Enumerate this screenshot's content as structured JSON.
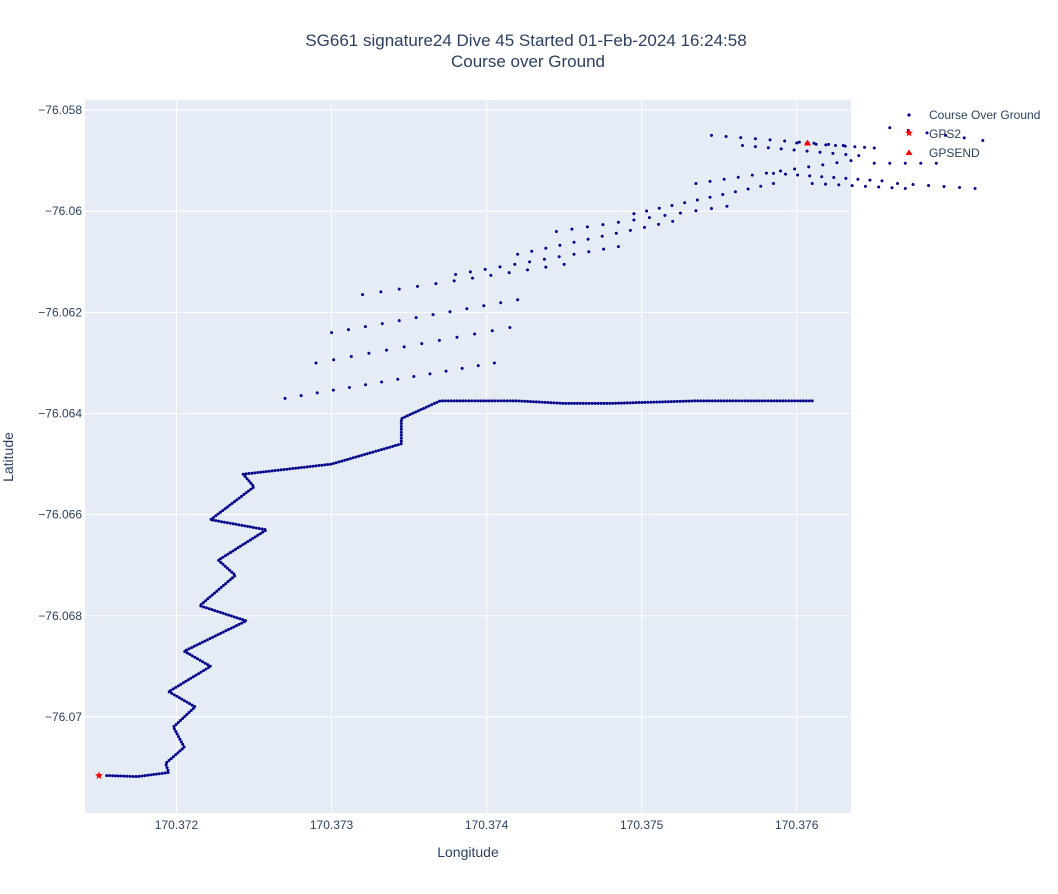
{
  "chart_data": {
    "type": "scatter",
    "title_lines": [
      "SG661 signature24 Dive 45 Started 01-Feb-2024 16:24:58",
      "Course over Ground"
    ],
    "xlabel": "Longitude",
    "ylabel": "Latitude",
    "xlim": [
      170.37141,
      170.37635
    ],
    "ylim": [
      -76.0719,
      -76.0578
    ],
    "x_ticks": [
      170.372,
      170.373,
      170.374,
      170.375,
      170.376
    ],
    "x_tick_labels": [
      "170.372",
      "170.373",
      "170.374",
      "170.375",
      "170.376"
    ],
    "y_ticks": [
      -76.058,
      -76.06,
      -76.062,
      -76.064,
      -76.066,
      -76.068,
      -76.07
    ],
    "y_tick_labels": [
      "−76.058",
      "−76.06",
      "−76.062",
      "−76.064",
      "−76.066",
      "−76.068",
      "−76.07"
    ],
    "grid": true,
    "legend_position": "top-right",
    "colors": {
      "plot_bg": "#e5ecf6",
      "grid": "#ffffff",
      "course": "#00008b",
      "gps": "#ff0000",
      "text": "#2a3f5f"
    },
    "series": [
      {
        "name": "Course Over Ground",
        "marker": "circle",
        "color": "#00008b",
        "path_vertices": [
          [
            170.37155,
            -76.07116
          ],
          [
            170.37175,
            -76.07118
          ],
          [
            170.37195,
            -76.0711
          ],
          [
            170.37193,
            -76.07092
          ],
          [
            170.37205,
            -76.0706
          ],
          [
            170.37198,
            -76.0702
          ],
          [
            170.37212,
            -76.0698
          ],
          [
            170.37195,
            -76.0695
          ],
          [
            170.37222,
            -76.069
          ],
          [
            170.37205,
            -76.0687
          ],
          [
            170.37245,
            -76.0681
          ],
          [
            170.37215,
            -76.0678
          ],
          [
            170.37238,
            -76.0672
          ],
          [
            170.37227,
            -76.0669
          ],
          [
            170.37258,
            -76.0663
          ],
          [
            170.37222,
            -76.0661
          ],
          [
            170.3725,
            -76.06545
          ],
          [
            170.37243,
            -76.0652
          ],
          [
            170.373,
            -76.065
          ],
          [
            170.37345,
            -76.0646
          ],
          [
            170.37345,
            -76.0641
          ],
          [
            170.3737,
            -76.06375
          ],
          [
            170.3742,
            -76.06375
          ],
          [
            170.3745,
            -76.0638
          ],
          [
            170.3748,
            -76.0638
          ],
          [
            170.37535,
            -76.06375
          ],
          [
            170.3761,
            -76.06375
          ]
        ],
        "path_points": 420,
        "start": [
          170.37155,
          -76.07116
        ],
        "rows": [
          {
            "x0": 170.3727,
            "x1": 170.37405,
            "y0": -76.0637,
            "y1": -76.063,
            "n": 14
          },
          {
            "x0": 170.3729,
            "x1": 170.37415,
            "y0": -76.063,
            "y1": -76.0623,
            "n": 12
          },
          {
            "x0": 170.373,
            "x1": 170.3742,
            "y0": -76.0624,
            "y1": -76.06175,
            "n": 12
          },
          {
            "x0": 170.3732,
            "x1": 170.3745,
            "y0": -76.06165,
            "y1": -76.06105,
            "n": 12
          },
          {
            "x0": 170.3738,
            "x1": 170.37485,
            "y0": -76.06125,
            "y1": -76.0607,
            "n": 12
          },
          {
            "x0": 170.3742,
            "x1": 170.3752,
            "y0": -76.06085,
            "y1": -76.0602,
            "n": 12
          },
          {
            "x0": 170.37445,
            "x1": 170.37555,
            "y0": -76.0604,
            "y1": -76.0599,
            "n": 12
          },
          {
            "x0": 170.37495,
            "x1": 170.37585,
            "y0": -76.06005,
            "y1": -76.05945,
            "n": 12
          },
          {
            "x0": 170.37535,
            "x1": 170.37635,
            "y0": -76.05945,
            "y1": -76.059,
            "n": 12
          },
          {
            "x0": 170.37545,
            "x1": 170.3763,
            "y0": -76.0585,
            "y1": -76.0587,
            "n": 10
          },
          {
            "x0": 170.37565,
            "x1": 170.3764,
            "y0": -76.0587,
            "y1": -76.0589,
            "n": 10
          },
          {
            "x0": 170.37585,
            "x1": 170.37655,
            "y0": -76.05925,
            "y1": -76.0594,
            "n": 10
          },
          {
            "x0": 170.376,
            "x1": 170.3765,
            "y0": -76.05865,
            "y1": -76.05875,
            "n": 9
          },
          {
            "x0": 170.3761,
            "x1": 170.3767,
            "y0": -76.05945,
            "y1": -76.05955,
            "n": 8
          },
          {
            "x0": 170.3765,
            "x1": 170.3769,
            "y0": -76.05905,
            "y1": -76.05905,
            "n": 5
          },
          {
            "x0": 170.3766,
            "x1": 170.3772,
            "y0": -76.05835,
            "y1": -76.0586,
            "n": 6
          },
          {
            "x0": 170.37665,
            "x1": 170.37715,
            "y0": -76.05945,
            "y1": -76.05955,
            "n": 6
          }
        ]
      },
      {
        "name": "GPS2",
        "marker": "star",
        "color": "#ff0000",
        "points": [
          [
            170.3715,
            -76.07116
          ]
        ]
      },
      {
        "name": "GPSEND",
        "marker": "triangle-up",
        "color": "#ff0000",
        "points": [
          [
            170.37607,
            -76.05865
          ]
        ]
      }
    ]
  }
}
